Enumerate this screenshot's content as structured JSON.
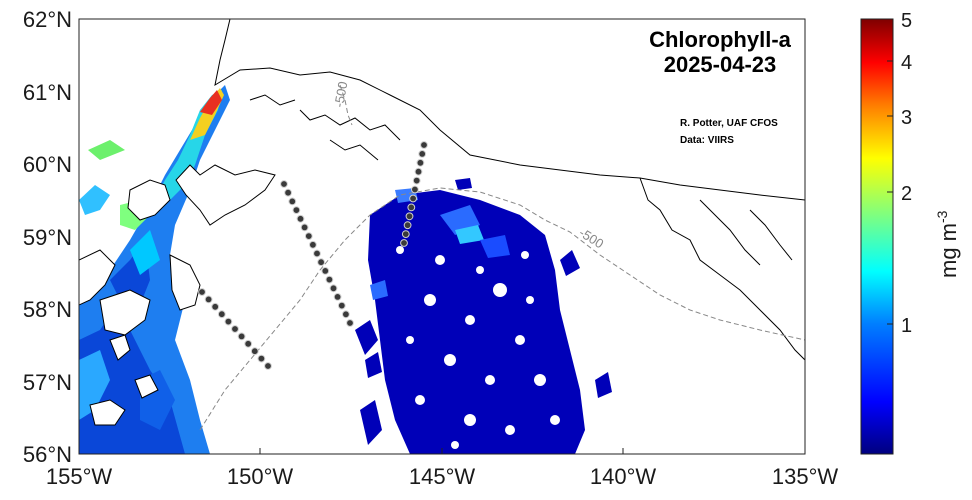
{
  "map": {
    "title_line1": "Chlorophyll-a",
    "title_line2": "2025-04-23",
    "credit_line1": "R. Potter, UAF CFOS",
    "credit_line2": "Data: VIIRS",
    "contour_labels": [
      "-500",
      "-500"
    ],
    "lon_ticks": [
      "155°W",
      "150°W",
      "145°W",
      "140°W",
      "135°W"
    ],
    "lat_ticks": [
      "62°N",
      "61°N",
      "60°N",
      "59°N",
      "58°N",
      "57°N",
      "56°N"
    ]
  },
  "colorbar": {
    "label": "mg m",
    "label_exponent": "-3",
    "ticks": [
      "5",
      "4",
      "3",
      "2",
      "1"
    ],
    "colors": [
      "#00007f",
      "#0000ff",
      "#007fff",
      "#00ffff",
      "#7fff7f",
      "#ffff00",
      "#ff7f00",
      "#ff0000",
      "#7f0000"
    ]
  },
  "colors": {
    "station": "#3a3a3a",
    "coast": "#000000",
    "contour": "#888888"
  }
}
